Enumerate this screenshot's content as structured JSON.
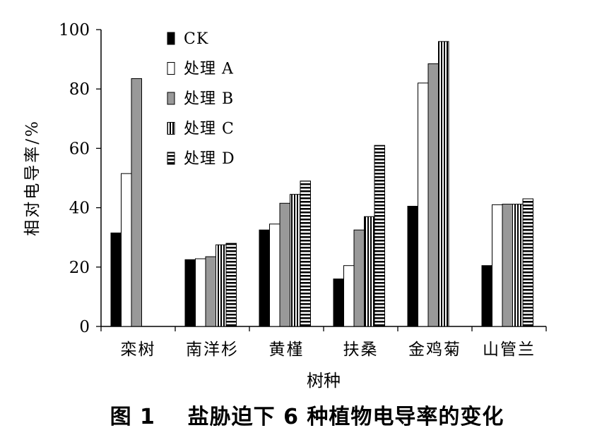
{
  "caption": "图 1    盐胁迫下 6 种植物电导率的变化",
  "chart_data": {
    "type": "bar",
    "title": "",
    "xlabel": "树种",
    "ylabel": "相对电导率/%",
    "ylim": [
      0,
      100
    ],
    "yticks": [
      "0",
      "20",
      "40",
      "60",
      "80",
      "100"
    ],
    "categories": [
      "栾树",
      "南洋杉",
      "黄槿",
      "扶桑",
      "金鸡菊",
      "山管兰"
    ],
    "series": [
      {
        "name": "CK",
        "pattern": "black",
        "values": [
          31.5,
          22.5,
          32.5,
          16,
          40.5,
          20.5
        ]
      },
      {
        "name": "处理 A",
        "pattern": "white",
        "values": [
          51.5,
          22.8,
          34.5,
          20.5,
          82,
          41
        ]
      },
      {
        "name": "处理 B",
        "pattern": "gray",
        "values": [
          83.5,
          23.5,
          41.5,
          32.5,
          88.5,
          41.2
        ]
      },
      {
        "name": "处理 C",
        "pattern": "vstripe",
        "values": [
          null,
          27.5,
          44.5,
          37,
          96,
          41.2
        ]
      },
      {
        "name": "处理 D",
        "pattern": "hstripe",
        "values": [
          null,
          28,
          49,
          61,
          null,
          43
        ]
      }
    ],
    "legend_position": "top-left",
    "grid": false,
    "colors": {
      "black": "#000000",
      "gray": "#999999",
      "white": "#ffffff"
    }
  }
}
